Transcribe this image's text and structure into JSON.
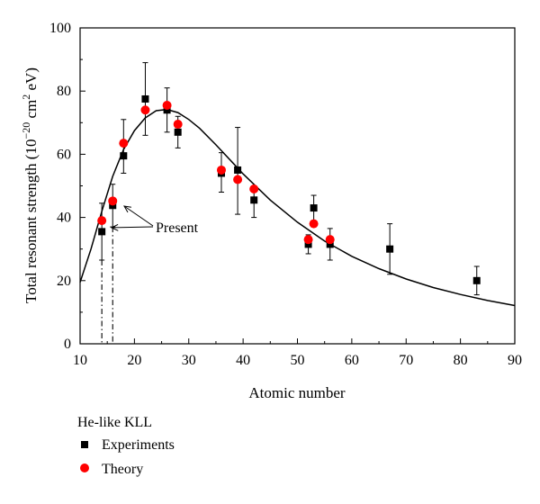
{
  "chart_data": {
    "type": "scatter",
    "title": "",
    "xlabel": "Atomic number",
    "ylabel_main": "Total resonant strength (10",
    "ylabel_exp": "−20",
    "ylabel_mid": " cm",
    "ylabel_exp2": "2",
    "ylabel_end": " eV)",
    "xlim": [
      10,
      90
    ],
    "ylim": [
      0,
      100
    ],
    "xticks": [
      "10",
      "20",
      "30",
      "40",
      "50",
      "60",
      "70",
      "80",
      "90"
    ],
    "yticks": [
      "0",
      "20",
      "40",
      "60",
      "80",
      "100"
    ],
    "grid": false,
    "legend": {
      "title": "He-like KLL",
      "placement": "below-left",
      "entries": [
        "Experiments",
        "Theory"
      ]
    },
    "annotation": {
      "text": "Present"
    },
    "series": [
      {
        "name": "Experiments",
        "color": "#000000",
        "marker": "square",
        "points": [
          {
            "x": 14,
            "y": 35.5,
            "lo": 26.5,
            "hi": 44.5
          },
          {
            "x": 16,
            "y": 43.8,
            "lo": 37.0,
            "hi": 50.5
          },
          {
            "x": 18,
            "y": 59.5,
            "lo": 54.0,
            "hi": 71.0
          },
          {
            "x": 22,
            "y": 77.5,
            "lo": 66.0,
            "hi": 89.0
          },
          {
            "x": 26,
            "y": 74.0,
            "lo": 67.0,
            "hi": 81.0
          },
          {
            "x": 28,
            "y": 67.0,
            "lo": 62.0,
            "hi": 72.0
          },
          {
            "x": 36,
            "y": 54.0,
            "lo": 48.0,
            "hi": 60.5
          },
          {
            "x": 39,
            "y": 55.0,
            "lo": 41.0,
            "hi": 68.5
          },
          {
            "x": 42,
            "y": 45.5,
            "lo": 40.0,
            "hi": 50.0
          },
          {
            "x": 52,
            "y": 31.5,
            "lo": 28.5,
            "hi": 34.5
          },
          {
            "x": 53,
            "y": 43.0,
            "lo": 39.0,
            "hi": 47.0
          },
          {
            "x": 56,
            "y": 31.5,
            "lo": 26.5,
            "hi": 36.5
          },
          {
            "x": 67,
            "y": 30.0,
            "lo": 22.0,
            "hi": 38.0
          },
          {
            "x": 83,
            "y": 20.0,
            "lo": 15.5,
            "hi": 24.5
          }
        ]
      },
      {
        "name": "Theory",
        "color": "#ff0000",
        "marker": "circle",
        "points": [
          {
            "x": 14,
            "y": 39.0
          },
          {
            "x": 16,
            "y": 45.2
          },
          {
            "x": 18,
            "y": 63.5
          },
          {
            "x": 22,
            "y": 74.0
          },
          {
            "x": 26,
            "y": 75.5
          },
          {
            "x": 28,
            "y": 69.5
          },
          {
            "x": 36,
            "y": 55.0
          },
          {
            "x": 39,
            "y": 52.0
          },
          {
            "x": 42,
            "y": 49.0
          },
          {
            "x": 52,
            "y": 33.0
          },
          {
            "x": 53,
            "y": 38.0
          },
          {
            "x": 56,
            "y": 33.0
          }
        ]
      }
    ],
    "fit_curve": {
      "x": [
        10,
        12,
        14,
        16,
        18,
        20,
        22,
        24,
        26,
        28,
        30,
        32,
        35,
        38,
        40,
        45,
        50,
        55,
        60,
        65,
        70,
        75,
        80,
        85,
        90
      ],
      "y": [
        19.5,
        30,
        42,
        53,
        61.5,
        67.5,
        71.5,
        73.8,
        74.2,
        73.2,
        71.0,
        68.2,
        63.0,
        57.5,
        53.8,
        45.5,
        38.5,
        32.5,
        27.7,
        23.8,
        20.5,
        17.8,
        15.6,
        13.7,
        12.1
      ]
    },
    "markers_vlines": [
      14,
      16
    ]
  }
}
